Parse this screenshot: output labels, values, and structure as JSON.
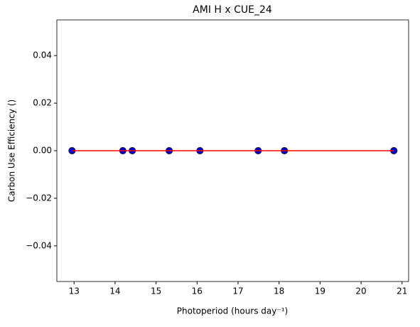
{
  "chart_data": {
    "type": "scatter",
    "title": "AMI H x CUE_24",
    "x_label": "Photoperiod (hours day⁻¹)",
    "y_label": "Carbon Use Efficiency ()",
    "series": [
      {
        "color": "#0000cc",
        "edge_color": "#1a1a6e",
        "x": [
          12.95,
          14.19,
          14.42,
          15.32,
          16.07,
          17.49,
          18.13,
          20.8
        ],
        "values": [
          0,
          0,
          0,
          0,
          0,
          0,
          0,
          0
        ]
      },
      {
        "type": "line",
        "color": "#ff0000",
        "x": [
          12.95,
          20.8
        ],
        "values": [
          0,
          0
        ]
      }
    ],
    "xlim": [
      12.58,
      21.16
    ],
    "xticks": [
      13,
      14,
      15,
      16,
      17,
      18,
      19,
      20,
      21
    ],
    "ylim": [
      -0.055,
      0.055
    ],
    "yticks": [
      {
        "value": -0.04,
        "label": "−0.04"
      },
      {
        "value": -0.02,
        "label": "−0.02"
      },
      {
        "value": 0,
        "label": "0.00"
      },
      0.02,
      0.04
    ],
    "grid": false
  }
}
